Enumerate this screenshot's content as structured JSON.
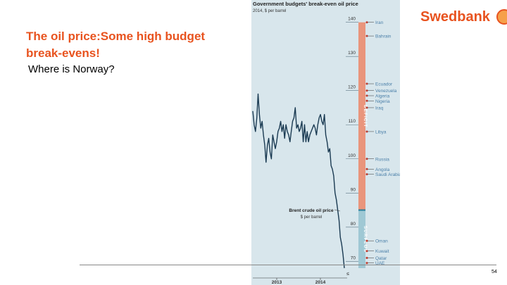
{
  "slide": {
    "title": "The oil price:Some high budget break-evens!",
    "subtitle": "Where is Norway?",
    "logo_text": "Swedbank",
    "page_number": "54"
  },
  "chart_data": {
    "type": "line",
    "title": "Government budgets' break-even oil price",
    "subtitle": "2014, $ per barrel",
    "y_ticks": [
      70,
      80,
      90,
      100,
      110,
      120,
      130,
      140
    ],
    "ylim": [
      68,
      142
    ],
    "x_ticks": [
      "2013",
      "2014"
    ],
    "zones": [
      {
        "label": "DEFICIT",
        "from": 85,
        "to": 140,
        "color": "#e9957c"
      },
      {
        "label": "SURPLUS",
        "from": 68,
        "to": 85,
        "color": "#9fc8d4"
      }
    ],
    "colors": {
      "background": "#d8e6ec",
      "line": "#1a3a52",
      "label": "#4a7fa8",
      "dot": "#c0392b"
    },
    "break_evens": [
      {
        "country": "Iran",
        "value": 140.0
      },
      {
        "country": "Bahrain",
        "value": 136.0
      },
      {
        "country": "Ecuador",
        "value": 122.0
      },
      {
        "country": "Venezuela",
        "value": 120.0
      },
      {
        "country": "Algeria",
        "value": 118.5
      },
      {
        "country": "Nigeria",
        "value": 117.0
      },
      {
        "country": "Iraq",
        "value": 115.0
      },
      {
        "country": "Libya",
        "value": 108.0
      },
      {
        "country": "Russia",
        "value": 100.0
      },
      {
        "country": "Angola",
        "value": 97.0
      },
      {
        "country": "Saudi Arabia",
        "value": 95.5
      },
      {
        "country": "Oman",
        "value": 76.0
      },
      {
        "country": "Kuwait",
        "value": 73.0
      },
      {
        "country": "Qatar",
        "value": 71.0
      },
      {
        "country": "UAE",
        "value": 69.5
      }
    ],
    "brent": {
      "label": "Brent crude oil price",
      "unit": "$ per barrel",
      "start": "2012-09",
      "end": "2014-12",
      "values": [
        114,
        110,
        108,
        112,
        119,
        113,
        109,
        111,
        107,
        104,
        99,
        104,
        106,
        102,
        100,
        107,
        105,
        103,
        105,
        108,
        109,
        111,
        108,
        110,
        106,
        110,
        108,
        107,
        105,
        108,
        111,
        112,
        115,
        109,
        110,
        108,
        109,
        111,
        105,
        110,
        105,
        108,
        105,
        107,
        108,
        109,
        110,
        109,
        107,
        110,
        112,
        113,
        111,
        110,
        113,
        107,
        105,
        102,
        103,
        98,
        97,
        95,
        90,
        88,
        85,
        82,
        77,
        75,
        72,
        68
      ]
    }
  }
}
